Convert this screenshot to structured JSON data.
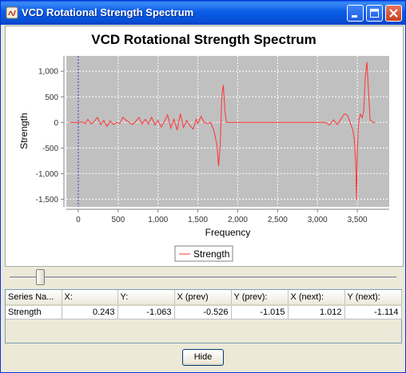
{
  "window": {
    "title": "VCD Rotational Strength Spectrum",
    "buttons": [
      "minimize",
      "maximize",
      "close"
    ]
  },
  "chart_data": {
    "type": "line",
    "title": "VCD Rotational Strength Spectrum",
    "xlabel": "Frequency",
    "ylabel": "Strength",
    "xlim": [
      -150,
      3900
    ],
    "ylim": [
      -1650,
      1300
    ],
    "x_ticks": [
      0,
      500,
      1000,
      1500,
      2000,
      2500,
      3000,
      3500
    ],
    "x_tick_labels": [
      "0",
      "500",
      "1,000",
      "1,500",
      "2,000",
      "2,500",
      "3,000",
      "3,500"
    ],
    "y_ticks": [
      1000,
      500,
      0,
      -500,
      -1000,
      -1500
    ],
    "y_tick_labels": [
      "1,000",
      "500",
      "0",
      "-500",
      "-1,000",
      "-1,500"
    ],
    "grid": true,
    "background": "#c0c0c0",
    "legend_position": "bottom",
    "crosshair_x": 0,
    "series": [
      {
        "name": "Strength",
        "color": "#ff3333",
        "x": [
          -100,
          0,
          50,
          90,
          120,
          160,
          200,
          240,
          280,
          320,
          360,
          400,
          440,
          480,
          520,
          560,
          600,
          640,
          680,
          720,
          760,
          800,
          840,
          880,
          920,
          960,
          1000,
          1040,
          1080,
          1120,
          1160,
          1200,
          1240,
          1280,
          1320,
          1360,
          1400,
          1440,
          1480,
          1500,
          1540,
          1580,
          1620,
          1660,
          1700,
          1740,
          1760,
          1780,
          1800,
          1820,
          1840,
          1860,
          1880,
          1900,
          1950,
          2000,
          2500,
          3000,
          3100,
          3150,
          3200,
          3250,
          3300,
          3340,
          3380,
          3400,
          3420,
          3440,
          3460,
          3480,
          3490,
          3500,
          3510,
          3520,
          3540,
          3560,
          3580,
          3600,
          3620,
          3640,
          3660,
          3680,
          3700,
          3720
        ],
        "y": [
          0,
          0,
          10,
          -20,
          60,
          -30,
          20,
          100,
          -40,
          40,
          -80,
          30,
          -40,
          0,
          -20,
          100,
          40,
          0,
          -40,
          20,
          100,
          -30,
          60,
          -30,
          100,
          -50,
          40,
          -90,
          20,
          150,
          -110,
          60,
          -150,
          170,
          -100,
          40,
          -60,
          -130,
          60,
          -20,
          120,
          0,
          -20,
          0,
          -150,
          -440,
          -850,
          -450,
          500,
          730,
          200,
          0,
          0,
          0,
          0,
          0,
          0,
          0,
          0,
          -50,
          50,
          -40,
          80,
          170,
          130,
          40,
          -50,
          -130,
          -300,
          -800,
          -1520,
          -600,
          -150,
          60,
          160,
          90,
          220,
          900,
          1180,
          600,
          50,
          20,
          0,
          0
        ]
      }
    ]
  },
  "slider": {
    "position": 0.08
  },
  "table": {
    "columns": [
      "Series Na...",
      "X:",
      "Y:",
      "X (prev)",
      "Y (prev):",
      "X (next):",
      "Y (next):"
    ],
    "rows": [
      [
        "Strength",
        "0.243",
        "-1.063",
        "-0.526",
        "-1.015",
        "1.012",
        "-1.114"
      ]
    ]
  },
  "footer": {
    "hide_label": "Hide"
  }
}
